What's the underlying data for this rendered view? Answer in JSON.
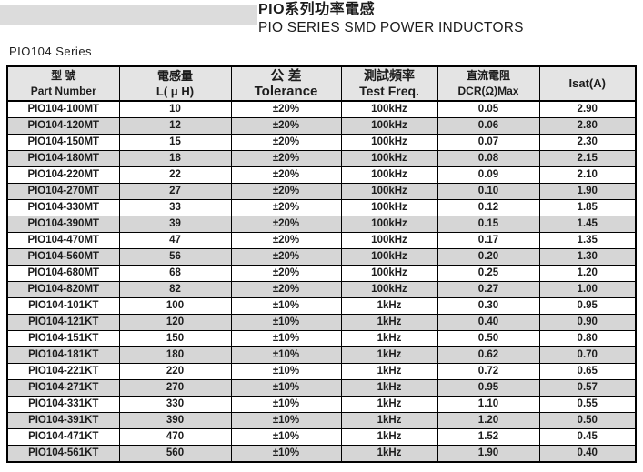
{
  "page": {
    "title_zh": "PIO系列功率電感",
    "title_en": "PIO SERIES SMD POWER INDUCTORS",
    "series_label": "PIO104 Series"
  },
  "colors": {
    "top_bar": "#dcdcdc",
    "header_bg": "#e4e4e4",
    "alt_row_bg": "#d6d6d6",
    "border": "#000000",
    "text": "#1c1c1c"
  },
  "table": {
    "headers": [
      {
        "zh": "型 號",
        "en": "Part Number"
      },
      {
        "zh": "電感量",
        "en": "L( μ H)"
      },
      {
        "zh": "公 差",
        "en": "Tolerance"
      },
      {
        "zh": "測試頻率",
        "en": "Test Freq."
      },
      {
        "zh": "直流電阻",
        "en": "DCR(Ω)Max"
      },
      {
        "label": "Isat(A)"
      }
    ],
    "rows": [
      [
        "PIO104-100MT",
        "10",
        "±20%",
        "100kHz",
        "0.05",
        "2.90"
      ],
      [
        "PIO104-120MT",
        "12",
        "±20%",
        "100kHz",
        "0.06",
        "2.80"
      ],
      [
        "PIO104-150MT",
        "15",
        "±20%",
        "100kHz",
        "0.07",
        "2.30"
      ],
      [
        "PIO104-180MT",
        "18",
        "±20%",
        "100kHz",
        "0.08",
        "2.15"
      ],
      [
        "PIO104-220MT",
        "22",
        "±20%",
        "100kHz",
        "0.09",
        "2.10"
      ],
      [
        "PIO104-270MT",
        "27",
        "±20%",
        "100kHz",
        "0.10",
        "1.90"
      ],
      [
        "PIO104-330MT",
        "33",
        "±20%",
        "100kHz",
        "0.12",
        "1.85"
      ],
      [
        "PIO104-390MT",
        "39",
        "±20%",
        "100kHz",
        "0.15",
        "1.45"
      ],
      [
        "PIO104-470MT",
        "47",
        "±20%",
        "100kHz",
        "0.17",
        "1.35"
      ],
      [
        "PIO104-560MT",
        "56",
        "±20%",
        "100kHz",
        "0.20",
        "1.30"
      ],
      [
        "PIO104-680MT",
        "68",
        "±20%",
        "100kHz",
        "0.25",
        "1.20"
      ],
      [
        "PIO104-820MT",
        "82",
        "±20%",
        "100kHz",
        "0.27",
        "1.00"
      ],
      [
        "PIO104-101KT",
        "100",
        "±10%",
        "1kHz",
        "0.30",
        "0.95"
      ],
      [
        "PIO104-121KT",
        "120",
        "±10%",
        "1kHz",
        "0.40",
        "0.90"
      ],
      [
        "PIO104-151KT",
        "150",
        "±10%",
        "1kHz",
        "0.50",
        "0.80"
      ],
      [
        "PIO104-181KT",
        "180",
        "±10%",
        "1kHz",
        "0.62",
        "0.70"
      ],
      [
        "PIO104-221KT",
        "220",
        "±10%",
        "1kHz",
        "0.72",
        "0.65"
      ],
      [
        "PIO104-271KT",
        "270",
        "±10%",
        "1kHz",
        "0.95",
        "0.57"
      ],
      [
        "PIO104-331KT",
        "330",
        "±10%",
        "1kHz",
        "1.10",
        "0.55"
      ],
      [
        "PIO104-391KT",
        "390",
        "±10%",
        "1kHz",
        "1.20",
        "0.50"
      ],
      [
        "PIO104-471KT",
        "470",
        "±10%",
        "1kHz",
        "1.52",
        "0.45"
      ],
      [
        "PIO104-561KT",
        "560",
        "±10%",
        "1kHz",
        "1.90",
        "0.40"
      ]
    ]
  }
}
